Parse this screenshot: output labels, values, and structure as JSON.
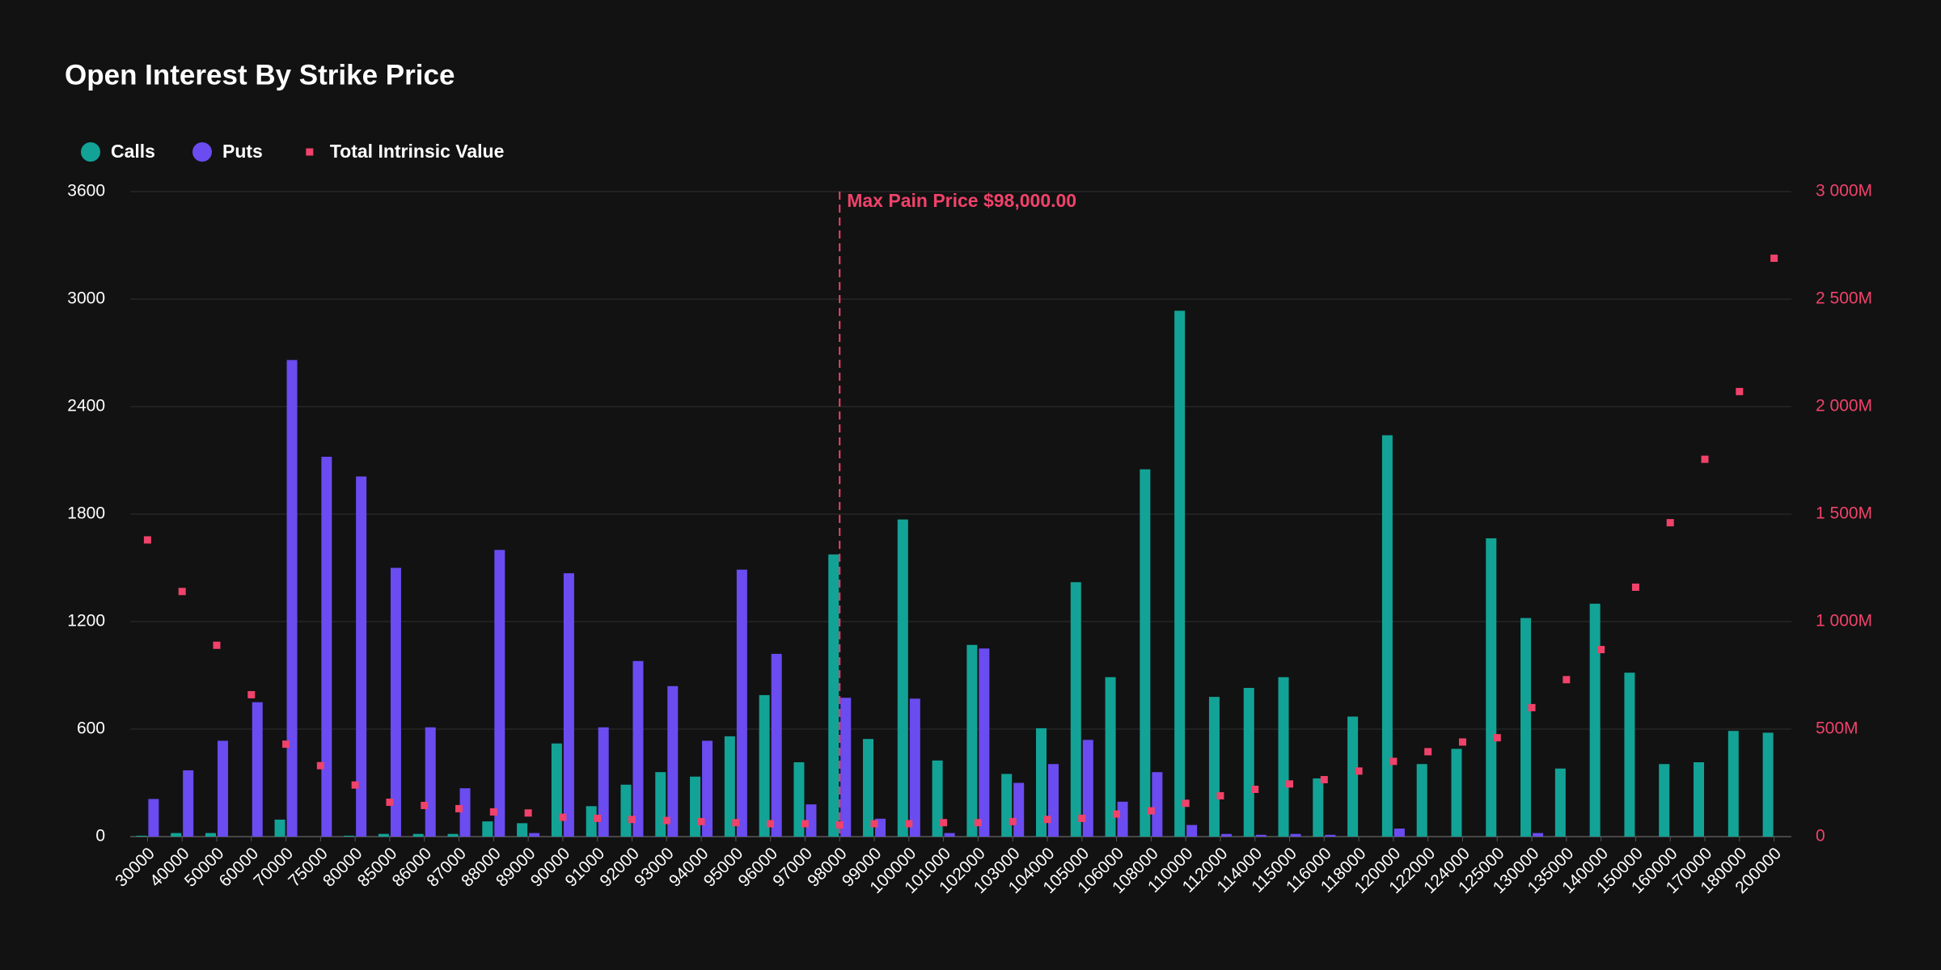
{
  "chart_data": {
    "type": "bar",
    "title": "Open Interest By Strike Price",
    "categories": [
      "30000",
      "40000",
      "50000",
      "60000",
      "70000",
      "75000",
      "80000",
      "85000",
      "86000",
      "87000",
      "88000",
      "89000",
      "90000",
      "91000",
      "92000",
      "93000",
      "94000",
      "95000",
      "96000",
      "97000",
      "98000",
      "99000",
      "100000",
      "101000",
      "102000",
      "103000",
      "104000",
      "105000",
      "106000",
      "108000",
      "110000",
      "112000",
      "114000",
      "115000",
      "116000",
      "118000",
      "120000",
      "122000",
      "124000",
      "125000",
      "130000",
      "135000",
      "140000",
      "150000",
      "160000",
      "170000",
      "180000",
      "200000"
    ],
    "series": [
      {
        "name": "Calls",
        "type": "bar",
        "color": "#12a396",
        "values": [
          5,
          20,
          20,
          0,
          95,
          0,
          5,
          15,
          15,
          15,
          85,
          75,
          520,
          170,
          290,
          360,
          335,
          560,
          790,
          415,
          1575,
          545,
          1770,
          425,
          1070,
          350,
          605,
          1420,
          890,
          2050,
          2935,
          780,
          830,
          890,
          325,
          670,
          2240,
          405,
          490,
          1665,
          1220,
          380,
          1300,
          915,
          405,
          415,
          590,
          580
        ]
      },
      {
        "name": "Puts",
        "type": "bar",
        "color": "#6a4cf0",
        "values": [
          210,
          370,
          535,
          750,
          2660,
          2120,
          2010,
          1500,
          610,
          270,
          1600,
          20,
          1470,
          610,
          980,
          840,
          535,
          1490,
          1020,
          180,
          775,
          100,
          770,
          20,
          1050,
          300,
          405,
          540,
          195,
          360,
          65,
          15,
          10,
          15,
          10,
          0,
          45,
          0,
          0,
          0,
          20,
          0,
          0,
          0,
          0,
          0,
          0,
          0
        ]
      },
      {
        "name": "Total Intrinsic Value",
        "type": "scatter",
        "axis": "y2",
        "color": "#f0426a",
        "values": [
          1380,
          1140,
          890,
          660,
          430,
          330,
          240,
          160,
          145,
          130,
          115,
          110,
          90,
          85,
          80,
          75,
          70,
          65,
          60,
          60,
          55,
          60,
          60,
          65,
          65,
          70,
          80,
          85,
          105,
          120,
          155,
          190,
          220,
          245,
          265,
          305,
          350,
          395,
          440,
          460,
          600,
          730,
          870,
          1160,
          1460,
          1755,
          2070,
          2690
        ]
      }
    ],
    "ylim": [
      0,
      3600
    ],
    "yticks": [
      0,
      600,
      1200,
      1800,
      2400,
      3000,
      3600
    ],
    "y2lim": [
      0,
      3000
    ],
    "y2ticks": [
      0,
      {
        "value": 500,
        "label": "500M"
      },
      {
        "value": 1000,
        "label": "1 000M"
      },
      {
        "value": 1500,
        "label": "1 500M"
      },
      {
        "value": 2000,
        "label": "2 000M"
      },
      {
        "value": 2500,
        "label": "2 500M"
      },
      {
        "value": 3000,
        "label": "3 000M"
      }
    ],
    "grid": true,
    "annotation": {
      "text": "Max Pain Price $98,000.00",
      "x": "98000",
      "color": "#f0426a"
    }
  }
}
